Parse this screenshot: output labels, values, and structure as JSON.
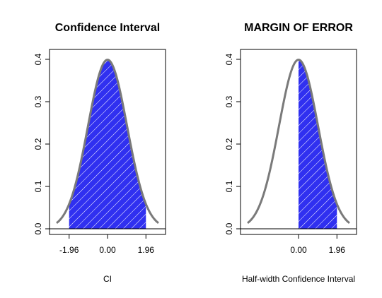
{
  "chart_data": [
    {
      "type": "area",
      "title": "Confidence Interval",
      "xlabel": "CI",
      "ylabel": "",
      "xlim": [
        -2.6,
        2.6
      ],
      "ylim": [
        0,
        0.4
      ],
      "curve": "standard-normal-density",
      "shaded_range": [
        -1.96,
        1.96
      ],
      "x_ticks": [
        -1.96,
        0.0,
        1.96
      ],
      "x_tick_labels": [
        "-1.96",
        "0.00",
        "1.96"
      ],
      "y_ticks": [
        0.0,
        0.1,
        0.2,
        0.3,
        0.4
      ],
      "y_tick_labels": [
        "0.0",
        "0.1",
        "0.2",
        "0.3",
        "0.4"
      ],
      "grid": false
    },
    {
      "type": "area",
      "title": "MARGIN OF ERROR",
      "xlabel": "Half-width Confidence Interval",
      "ylabel": "",
      "xlim": [
        -2.6,
        2.6
      ],
      "ylim": [
        0,
        0.4
      ],
      "curve": "standard-normal-density",
      "shaded_range": [
        0.0,
        1.96
      ],
      "x_ticks": [
        0.0,
        1.96
      ],
      "x_tick_labels": [
        "0.00",
        "1.96"
      ],
      "y_ticks": [
        0.0,
        0.1,
        0.2,
        0.3,
        0.4
      ],
      "y_tick_labels": [
        "0.0",
        "0.1",
        "0.2",
        "0.3",
        "0.4"
      ],
      "grid": false
    }
  ],
  "colors": {
    "fill": "#3030f0",
    "hatch": "#ffffff",
    "curve": "#7a7a7a",
    "axis": "#000000"
  }
}
